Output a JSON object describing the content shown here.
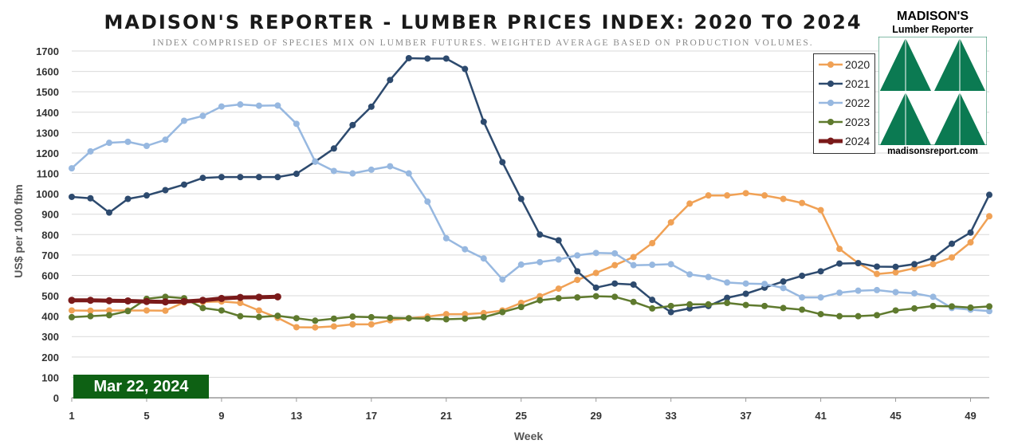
{
  "title": "MADISON'S REPORTER - LUMBER PRICES INDEX: 2020 TO 2024",
  "subtitle": "INDEX COMPRISED OF SPECIES MIX ON LUMBER FUTURES. WEIGHTED AVERAGE BASED ON PRODUCTION VOLUMES.",
  "date_badge": "Mar 22, 2024",
  "logo": {
    "name": "MADISON'S",
    "subtitle": "Lumber Reporter",
    "url": "madisonsreport.com",
    "color": "#0b7a52"
  },
  "chart_data": {
    "type": "line",
    "title": "MADISON'S REPORTER - LUMBER PRICES INDEX: 2020 TO 2024",
    "xlabel": "Week",
    "ylabel": "US$ per 1000 fbm",
    "xlim": [
      1,
      50
    ],
    "ylim": [
      0,
      1700
    ],
    "x_ticks": [
      1,
      5,
      9,
      13,
      17,
      21,
      25,
      29,
      33,
      37,
      41,
      45,
      49
    ],
    "y_ticks": [
      0,
      100,
      200,
      300,
      400,
      500,
      600,
      700,
      800,
      900,
      1000,
      1100,
      1200,
      1300,
      1400,
      1500,
      1600,
      1700
    ],
    "grid": "horizontal",
    "legend_position": "top-right",
    "series": [
      {
        "name": "2020",
        "color": "#f0a155",
        "width": 2.5,
        "values": [
          428,
          427,
          428,
          428,
          428,
          427,
          468,
          470,
          472,
          465,
          428,
          392,
          346,
          345,
          350,
          360,
          360,
          380,
          390,
          398,
          410,
          410,
          415,
          428,
          465,
          498,
          535,
          578,
          612,
          650,
          690,
          758,
          860,
          952,
          992,
          992,
          1003,
          992,
          975,
          955,
          920,
          730,
          660,
          607,
          615,
          635,
          655,
          688,
          762,
          890
        ]
      },
      {
        "name": "2021",
        "color": "#2d4a6e",
        "width": 2.5,
        "values": [
          985,
          978,
          908,
          975,
          992,
          1018,
          1045,
          1078,
          1082,
          1082,
          1082,
          1082,
          1098,
          1158,
          1222,
          1337,
          1427,
          1558,
          1665,
          1663,
          1663,
          1612,
          1353,
          1155,
          975,
          800,
          772,
          620,
          540,
          560,
          555,
          480,
          420,
          438,
          450,
          490,
          510,
          540,
          570,
          598,
          620,
          658,
          660,
          643,
          642,
          655,
          685,
          755,
          810,
          995
        ]
      },
      {
        "name": "2022",
        "color": "#97b8e0",
        "width": 2.5,
        "values": [
          1125,
          1208,
          1250,
          1255,
          1235,
          1265,
          1358,
          1382,
          1428,
          1438,
          1432,
          1433,
          1343,
          1158,
          1112,
          1100,
          1118,
          1135,
          1100,
          962,
          782,
          728,
          683,
          580,
          653,
          665,
          678,
          698,
          710,
          708,
          650,
          652,
          655,
          605,
          592,
          565,
          560,
          558,
          538,
          492,
          492,
          515,
          525,
          528,
          518,
          512,
          495,
          440,
          432,
          425
        ]
      },
      {
        "name": "2023",
        "color": "#5f7a2e",
        "width": 2.5,
        "values": [
          395,
          400,
          405,
          425,
          485,
          495,
          488,
          440,
          428,
          400,
          396,
          402,
          390,
          378,
          388,
          398,
          395,
          392,
          390,
          388,
          385,
          388,
          395,
          420,
          445,
          478,
          488,
          492,
          498,
          495,
          470,
          438,
          450,
          458,
          458,
          465,
          455,
          450,
          440,
          432,
          410,
          400,
          400,
          405,
          428,
          438,
          450,
          448,
          442,
          448
        ]
      },
      {
        "name": "2024",
        "color": "#7a1a1a",
        "width": 5,
        "values": [
          478,
          478,
          476,
          475,
          472,
          470,
          472,
          478,
          487,
          492,
          493,
          495
        ]
      }
    ]
  }
}
